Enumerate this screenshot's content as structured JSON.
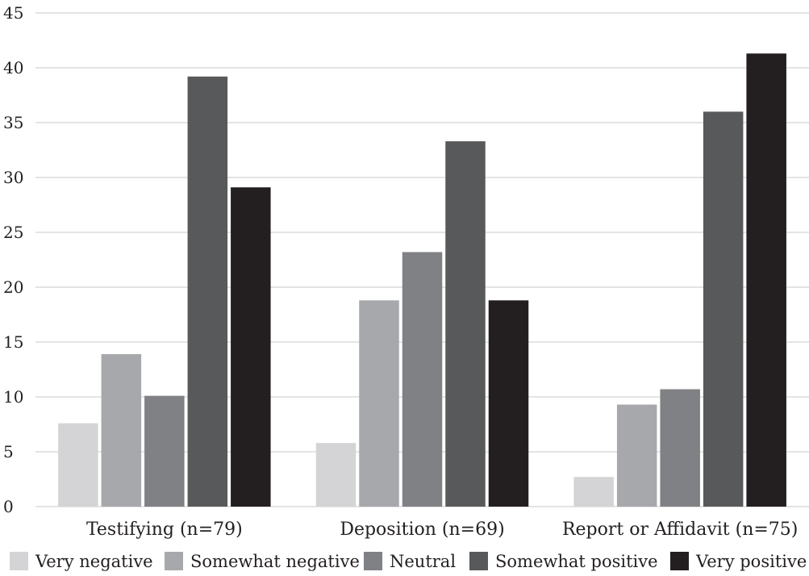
{
  "chart_data": {
    "type": "bar",
    "title": "",
    "xlabel": "",
    "ylabel": "",
    "ylim": [
      0,
      45
    ],
    "yticks": [
      0,
      5,
      10,
      15,
      20,
      25,
      30,
      35,
      40,
      45
    ],
    "grid": true,
    "legend_position": "bottom",
    "categories": [
      "Testifying (n=79)",
      "Deposition (n=69)",
      "Report or Affidavit (n=75)"
    ],
    "series": [
      {
        "name": "Very negative",
        "color": "#d4d4d6",
        "values": [
          7.6,
          5.8,
          2.7
        ]
      },
      {
        "name": "Somewhat negative",
        "color": "#a7a8ab",
        "values": [
          13.9,
          18.8,
          9.3
        ]
      },
      {
        "name": "Neutral",
        "color": "#808184",
        "values": [
          10.1,
          23.2,
          10.7
        ]
      },
      {
        "name": "Somewhat positive",
        "color": "#58595b",
        "values": [
          39.2,
          33.3,
          36.0
        ]
      },
      {
        "name": "Very positive",
        "color": "#231f20",
        "values": [
          29.1,
          18.8,
          41.3
        ]
      }
    ]
  }
}
